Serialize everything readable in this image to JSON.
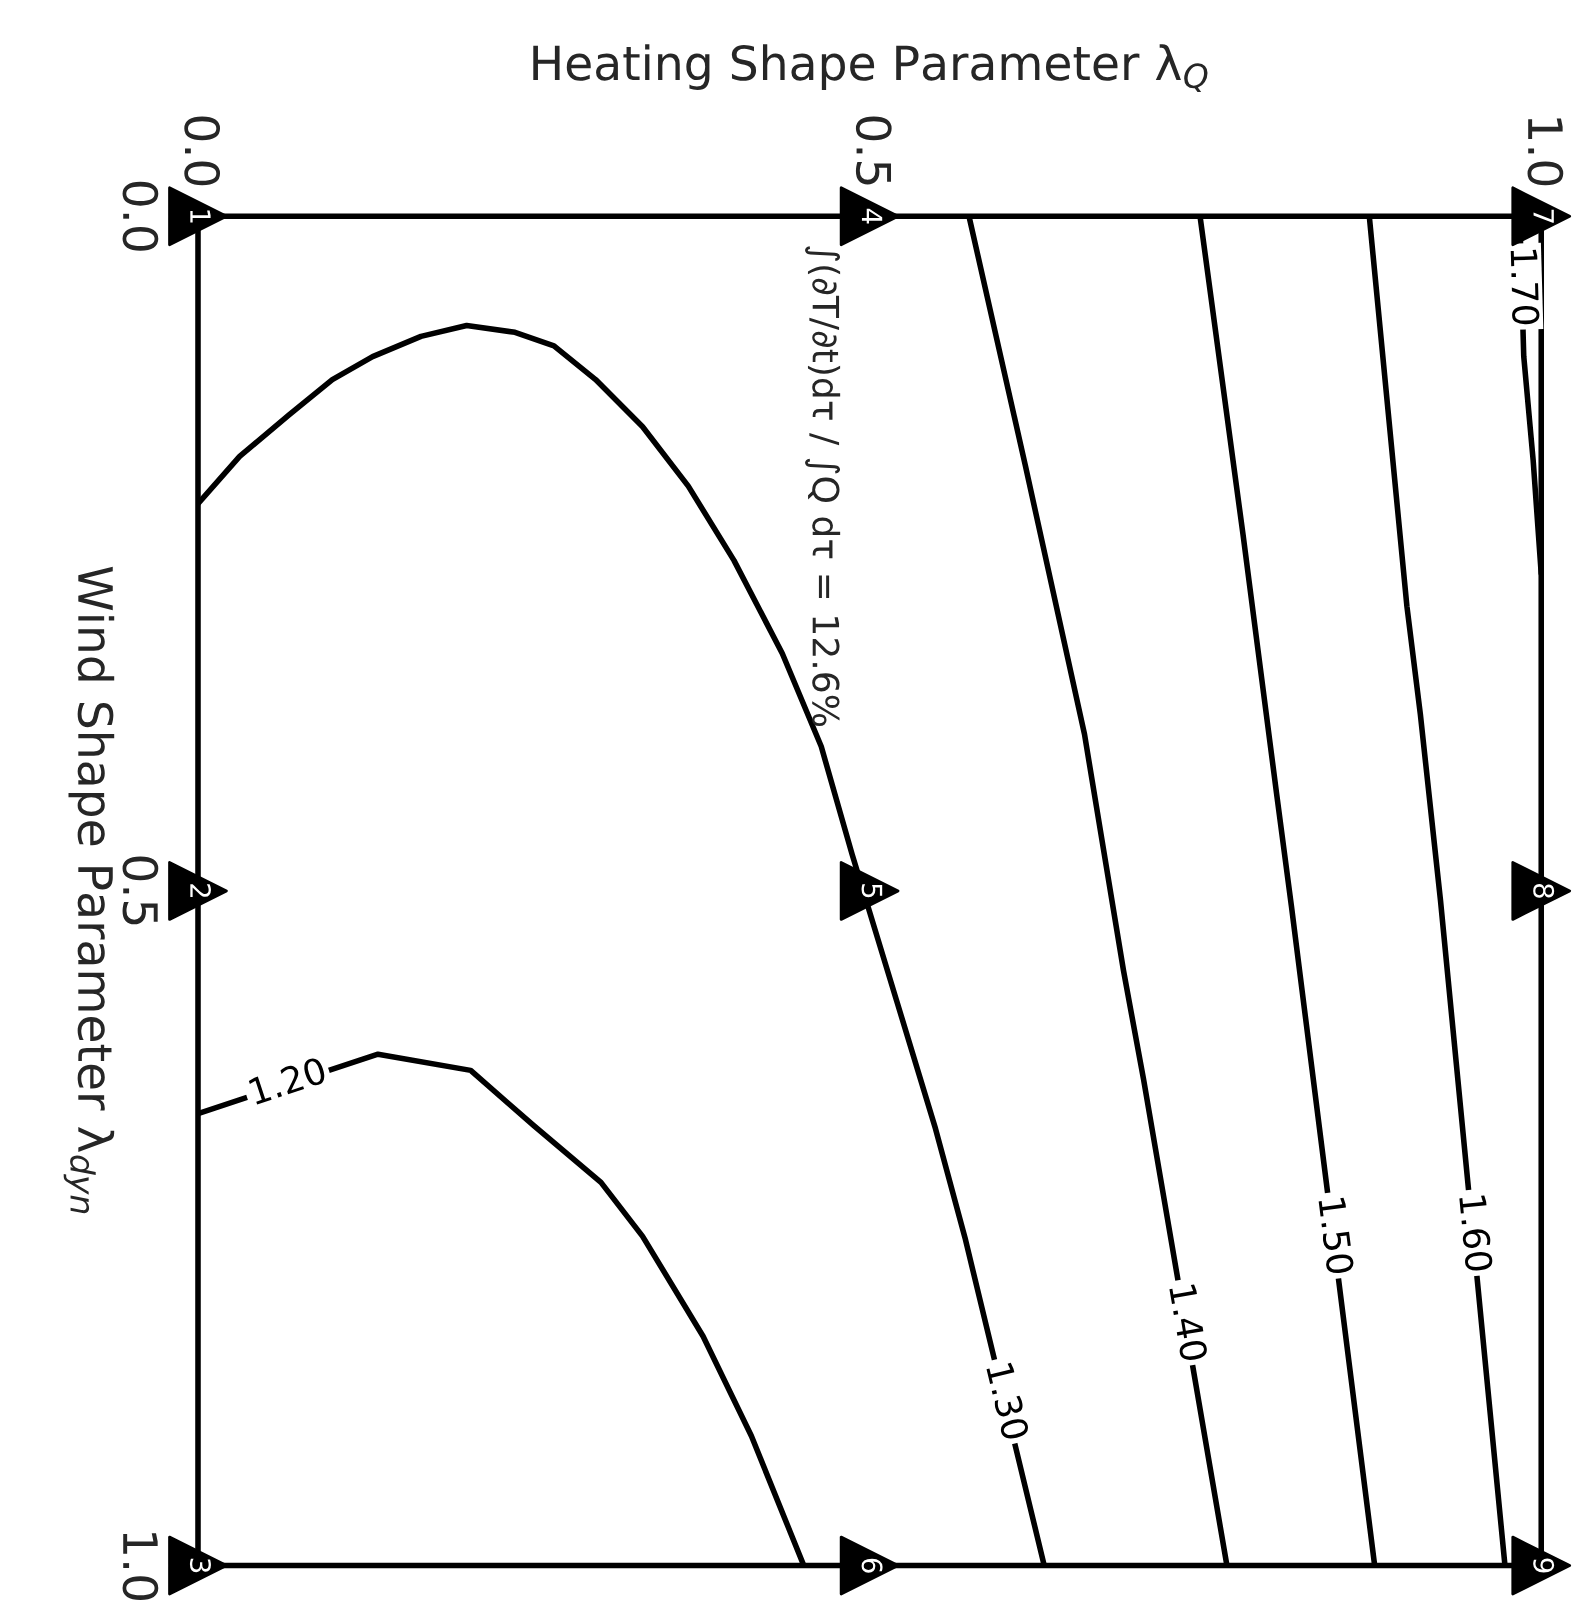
{
  "chart_data": {
    "type": "line",
    "xlabel": "Heating Shape Parameter λ$_{Q}$",
    "ylabel": "Wind Shape Parameter λ$_{dyn}$",
    "xlim": [
      0.0,
      1.0
    ],
    "xticks": [
      {
        "value": 0.0,
        "label": "0.0"
      },
      {
        "value": 0.5,
        "label": "0.5"
      },
      {
        "value": 1.0,
        "label": "1.0"
      }
    ],
    "ylim": [
      1.0,
      0.0
    ],
    "yticks": [
      {
        "value": 0.0,
        "label": "0.0"
      },
      {
        "value": 0.5,
        "label": "0.5"
      },
      {
        "value": 1.0,
        "label": "1.0"
      }
    ],
    "grid": false,
    "legend": false,
    "series": [
      {
        "name": "1.20",
        "color": "#000000",
        "x": [
          0,
          0.134,
          0.203,
          0.25,
          0.3,
          0.331,
          0.376,
          0.412,
          0.451
        ],
        "values": [
          0.665,
          0.621,
          0.633,
          0.674,
          0.716,
          0.756,
          0.83,
          0.904,
          1.0
        ]
      },
      {
        "name": "1.30",
        "color": "#000000",
        "x": [
          0,
          0.031,
          0.068,
          0.1,
          0.13,
          0.166,
          0.2,
          0.236,
          0.265,
          0.296,
          0.331,
          0.365,
          0.399,
          0.435,
          0.464,
          0.487,
          0.52,
          0.549,
          0.571,
          0.63
        ],
        "values": [
          0.213,
          0.178,
          0.147,
          0.121,
          0.104,
          0.089,
          0.081,
          0.086,
          0.096,
          0.121,
          0.156,
          0.2,
          0.255,
          0.324,
          0.393,
          0.473,
          0.581,
          0.676,
          0.757,
          1.0
        ]
      },
      {
        "name": "1.40",
        "color": "#000000",
        "x": [
          0.574,
          0.616,
          0.66,
          0.689,
          0.704,
          0.766
        ],
        "values": [
          0.0,
          0.185,
          0.384,
          0.559,
          0.64,
          1.0
        ]
      },
      {
        "name": "1.50",
        "color": "#000000",
        "x": [
          0.746,
          0.778,
          0.803,
          0.814,
          0.876
        ],
        "values": [
          0.0,
          0.236,
          0.428,
          0.511,
          1.0
        ]
      },
      {
        "name": "1.60",
        "color": "#000000",
        "x": [
          0.872,
          0.9,
          0.91,
          0.925,
          0.973
        ],
        "values": [
          0.0,
          0.289,
          0.369,
          0.507,
          1.0
        ]
      },
      {
        "name": "1.70",
        "color": "#000000",
        "x": [
          0.984,
          0.987,
          0.994,
          1.0
        ],
        "values": [
          0.0,
          0.104,
          0.181,
          0.265
        ]
      },
      {
        "type": "scatter",
        "color": "#000000",
        "marker": "triangle",
        "x": [
          0,
          0,
          0,
          0.5,
          0.5,
          0.5,
          1,
          1,
          1
        ],
        "values": [
          0,
          0.5,
          1,
          0,
          0.5,
          1,
          0,
          0.5,
          1
        ]
      }
    ],
    "annotations": [
      {
        "text": "1",
        "x": 0,
        "y": 0
      },
      {
        "text": "2",
        "x": 0,
        "y": 0.5
      },
      {
        "text": "3",
        "x": 0,
        "y": 1
      },
      {
        "text": "4",
        "x": 0.5,
        "y": 0
      },
      {
        "text": "5",
        "x": 0.5,
        "y": 0.5
      },
      {
        "text": "6",
        "x": 0.5,
        "y": 1
      },
      {
        "text": "7",
        "x": 1,
        "y": 0
      },
      {
        "text": "8",
        "x": 1,
        "y": 0.5
      },
      {
        "text": "9",
        "x": 1,
        "y": 1
      },
      "∫(∂T/∂t)dτ / ∫Q dτ = 12.6%"
    ]
  }
}
